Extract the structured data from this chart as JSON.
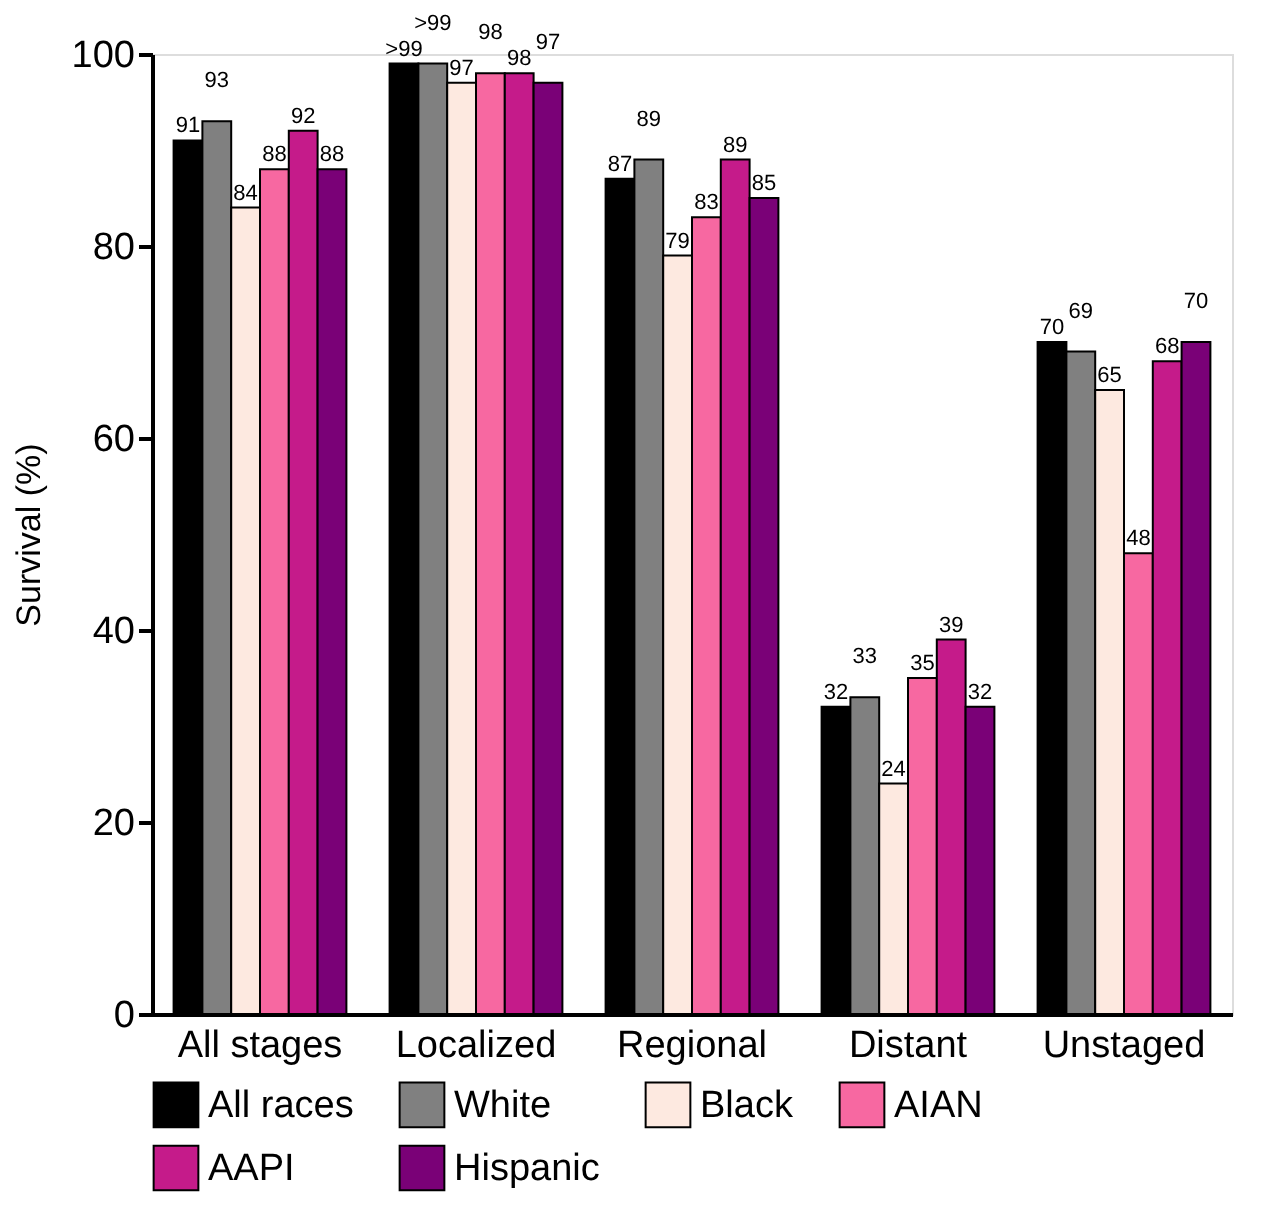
{
  "chart_data": {
    "type": "bar",
    "ylabel": "Survival (%)",
    "categories": [
      "All stages",
      "Localized",
      "Regional",
      "Distant",
      "Unstaged"
    ],
    "ylim": [
      0,
      100
    ],
    "yticks": [
      0,
      20,
      40,
      60,
      80,
      100
    ],
    "grid": false,
    "legend": "bottom",
    "series": [
      {
        "name": "All races",
        "color": "#000000",
        "values": [
          91,
          99,
          87,
          32,
          70
        ],
        "value_labels": [
          "91",
          ">99",
          "87",
          "32",
          "70"
        ]
      },
      {
        "name": "White",
        "color": "#808080",
        "values": [
          93,
          99,
          89,
          33,
          69
        ],
        "value_labels": [
          "93",
          ">99",
          "89",
          "33",
          "69"
        ]
      },
      {
        "name": "Black",
        "color": "#fde9e0",
        "values": [
          84,
          97,
          79,
          24,
          65
        ],
        "value_labels": [
          "84",
          "97",
          "79",
          "24",
          "65"
        ]
      },
      {
        "name": "AIAN",
        "color": "#f768a1",
        "values": [
          88,
          98,
          83,
          35,
          48
        ],
        "value_labels": [
          "88",
          "98",
          "83",
          "35",
          "48"
        ]
      },
      {
        "name": "AAPI",
        "color": "#c51b8a",
        "values": [
          92,
          98,
          89,
          39,
          68
        ],
        "value_labels": [
          "92",
          "98",
          "89",
          "39",
          "68"
        ]
      },
      {
        "name": "Hispanic",
        "color": "#7a0177",
        "values": [
          88,
          97,
          85,
          32,
          70
        ],
        "value_labels": [
          "88",
          "97",
          "85",
          "32",
          "70"
        ]
      }
    ]
  }
}
